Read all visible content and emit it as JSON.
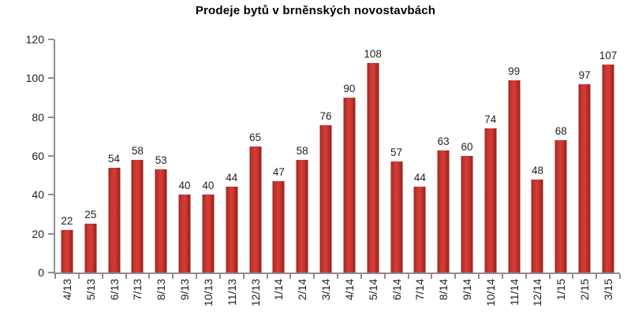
{
  "chart_data": {
    "type": "bar",
    "title": "Prodeje bytů v brněnských novostavbách",
    "xlabel": "",
    "ylabel": "",
    "categories": [
      "4/13",
      "5/13",
      "6/13",
      "7/13",
      "8/13",
      "9/13",
      "10/13",
      "11/13",
      "12/13",
      "1/14",
      "2/14",
      "3/14",
      "4/14",
      "5/14",
      "6/14",
      "7/14",
      "8/14",
      "9/14",
      "10/14",
      "11/14",
      "12/14",
      "1/15",
      "2/15",
      "3/15"
    ],
    "values": [
      22,
      25,
      54,
      58,
      53,
      40,
      40,
      44,
      65,
      47,
      58,
      76,
      90,
      108,
      57,
      44,
      63,
      60,
      74,
      99,
      48,
      68,
      97,
      107
    ],
    "ylim": [
      0,
      120
    ],
    "y_ticks": [
      0,
      20,
      40,
      60,
      80,
      100,
      120
    ],
    "grid": false,
    "legend_position": "none",
    "data_labels": true,
    "colors": {
      "bar_gradient": [
        "#9b2823",
        "#c93732",
        "#d63d35",
        "#bc2f29",
        "#8f211c"
      ],
      "axis": "#8e8e8e",
      "text": "#1f1f1f",
      "title": "#000000",
      "background": "#ffffff"
    }
  }
}
